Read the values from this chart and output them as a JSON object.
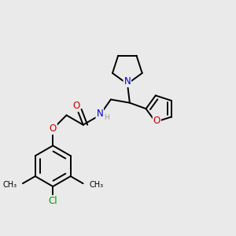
{
  "bg_color": "#eaeaea",
  "atom_colors": {
    "C": "#000000",
    "N": "#0000cc",
    "O": "#cc0000",
    "Cl": "#009900",
    "H": "#999999"
  },
  "bond_color": "#000000",
  "bond_width": 1.4,
  "font_size_atom": 8.5,
  "font_size_small": 7.0
}
